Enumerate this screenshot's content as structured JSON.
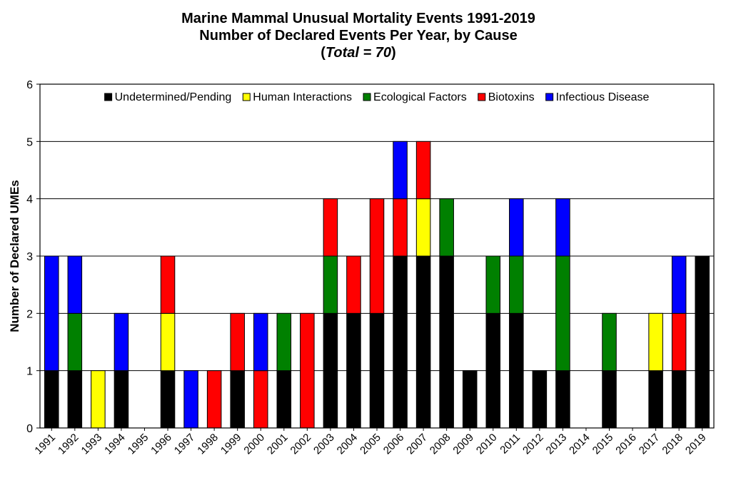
{
  "chart_data": {
    "type": "bar",
    "stacked": true,
    "title_lines": [
      "Marine Mammal Unusual Mortality Events 1991-2019",
      "Number of Declared Events Per Year, by Cause"
    ],
    "total_note": {
      "open": "(",
      "label": "Total = 70",
      "close": ")"
    },
    "ylabel": "Number of Declared UMEs",
    "xlabel": "",
    "ylim": [
      0,
      6
    ],
    "yticks": [
      "0",
      "1",
      "2",
      "3",
      "4",
      "5",
      "6"
    ],
    "grid": true,
    "legend_position": "top",
    "categories": [
      "1991",
      "1992",
      "1993",
      "1994",
      "1995",
      "1996",
      "1997",
      "1998",
      "1999",
      "2000",
      "2001",
      "2002",
      "2003",
      "2004",
      "2005",
      "2006",
      "2007",
      "2008",
      "2009",
      "2010",
      "2011",
      "2012",
      "2013",
      "2014",
      "2015",
      "2016",
      "2017",
      "2018",
      "2019"
    ],
    "series": [
      {
        "name": "Undetermined/Pending",
        "color": "#000000",
        "values": [
          1,
          1,
          0,
          1,
          0,
          1,
          0,
          0,
          1,
          0,
          1,
          0,
          2,
          2,
          2,
          3,
          3,
          3,
          1,
          2,
          2,
          1,
          1,
          0,
          1,
          0,
          1,
          1,
          3
        ]
      },
      {
        "name": "Human Interactions",
        "color": "#ffff00",
        "values": [
          0,
          0,
          1,
          0,
          0,
          1,
          0,
          0,
          0,
          0,
          0,
          0,
          0,
          0,
          0,
          0,
          1,
          0,
          0,
          0,
          0,
          0,
          0,
          0,
          0,
          0,
          1,
          0,
          0
        ]
      },
      {
        "name": "Ecological Factors",
        "color": "#008000",
        "values": [
          0,
          1,
          0,
          0,
          0,
          0,
          0,
          0,
          0,
          0,
          1,
          0,
          1,
          0,
          0,
          0,
          0,
          1,
          0,
          1,
          1,
          0,
          2,
          0,
          1,
          0,
          0,
          0,
          0
        ]
      },
      {
        "name": "Biotoxins",
        "color": "#ff0000",
        "values": [
          0,
          0,
          0,
          0,
          0,
          1,
          0,
          1,
          1,
          1,
          0,
          2,
          1,
          1,
          2,
          1,
          1,
          0,
          0,
          0,
          0,
          0,
          0,
          0,
          0,
          0,
          0,
          1,
          0
        ]
      },
      {
        "name": "Infectious Disease",
        "color": "#0000ff",
        "values": [
          2,
          1,
          0,
          1,
          0,
          0,
          1,
          0,
          0,
          1,
          0,
          0,
          0,
          0,
          0,
          1,
          0,
          0,
          0,
          0,
          1,
          0,
          1,
          0,
          0,
          0,
          0,
          1,
          0
        ]
      }
    ]
  }
}
